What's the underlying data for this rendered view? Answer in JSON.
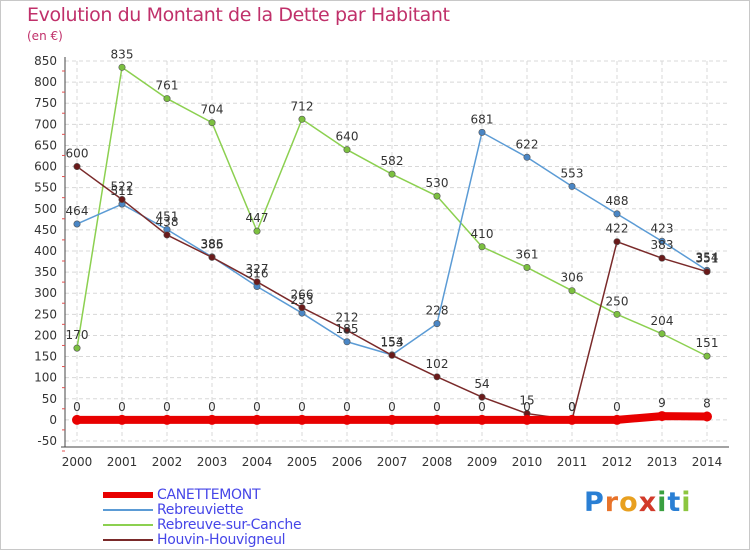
{
  "title": "Evolution du Montant de la Dette par Habitant",
  "subtitle": "(en €)",
  "logo": {
    "text": "Proxiti",
    "letters": [
      "P",
      "r",
      "o",
      "x",
      "i",
      "t",
      "i"
    ],
    "colors": [
      "#2a7fd4",
      "#e8732a",
      "#e8a020",
      "#d23a2a",
      "#3aa040",
      "#2a7fd4",
      "#8cc63f"
    ]
  },
  "chart_data": {
    "type": "line",
    "x": [
      "2000",
      "2001",
      "2002",
      "2003",
      "2004",
      "2005",
      "2006",
      "2007",
      "2008",
      "2009",
      "2010",
      "2011",
      "2012",
      "2013",
      "2014"
    ],
    "ylim": [
      -50,
      850
    ],
    "yticks": [
      -50,
      0,
      50,
      100,
      150,
      200,
      250,
      300,
      350,
      400,
      450,
      500,
      550,
      600,
      650,
      700,
      750,
      800,
      850
    ],
    "grid": true,
    "legend_position": "bottom-left",
    "series": [
      {
        "name": "CANETTEMONT",
        "color": "#e80000",
        "marker": "#e80000",
        "values": [
          0,
          0,
          0,
          0,
          0,
          0,
          0,
          0,
          0,
          0,
          0,
          0,
          0,
          9,
          8
        ],
        "labels": [
          "0",
          "0",
          "0",
          "0",
          "0",
          "0",
          "0",
          "0",
          "0",
          "0",
          "0",
          "0",
          "0",
          "9",
          "8"
        ]
      },
      {
        "name": "Rebreuviette",
        "color": "#5b9bd5",
        "marker": "#4a86c5",
        "values": [
          464,
          511,
          451,
          386,
          316,
          253,
          185,
          154,
          228,
          681,
          622,
          553,
          488,
          423,
          354
        ],
        "labels": [
          "464",
          "511",
          "451",
          "386",
          "316",
          "253",
          "185",
          "154",
          "228",
          "681",
          "622",
          "553",
          "488",
          "423",
          "354"
        ]
      },
      {
        "name": "Rebreuve-sur-Canche",
        "color": "#8cd050",
        "marker": "#7cc040",
        "values": [
          170,
          835,
          761,
          704,
          447,
          712,
          640,
          582,
          530,
          410,
          361,
          306,
          250,
          204,
          151
        ],
        "labels": [
          "170",
          "835",
          "761",
          "704",
          "447",
          "712",
          "640",
          "582",
          "530",
          "410",
          "361",
          "306",
          "250",
          "204",
          "151"
        ]
      },
      {
        "name": "Houvin-Houvigneul",
        "color": "#7a2a2a",
        "marker": "#6a1a1a",
        "values": [
          600,
          522,
          438,
          385,
          327,
          266,
          212,
          153,
          102,
          54,
          15,
          0,
          422,
          383,
          351
        ],
        "labels": [
          "600",
          "522",
          "438",
          "385",
          "327",
          "266",
          "212",
          "153",
          "102",
          "54",
          "15",
          "0",
          "422",
          "383",
          "351"
        ]
      }
    ]
  }
}
